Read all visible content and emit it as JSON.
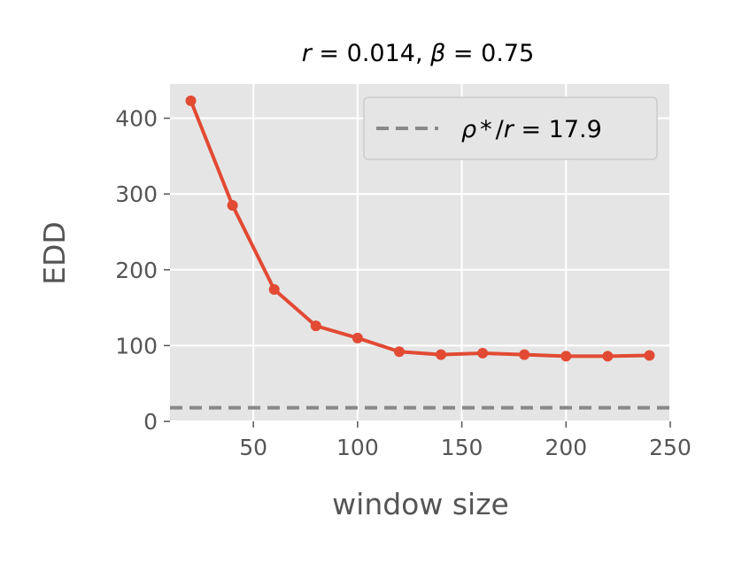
{
  "chart_data": {
    "type": "line",
    "title": {
      "r_symbol": "r",
      "r_value": "0.014",
      "beta_symbol": "β",
      "beta_value": "0.75"
    },
    "xlabel": "window size",
    "ylabel": "EDD",
    "xlim": [
      10,
      250
    ],
    "ylim": [
      0,
      445
    ],
    "xticks": [
      50,
      100,
      150,
      200,
      250
    ],
    "yticks": [
      0,
      100,
      200,
      300,
      400
    ],
    "grid": true,
    "legend_position": "top-right",
    "series": [
      {
        "x": [
          20,
          40,
          60,
          80,
          100,
          120,
          140,
          160,
          180,
          200,
          220,
          240
        ],
        "y": [
          423,
          285,
          174,
          126,
          110,
          92,
          88,
          90,
          88,
          86,
          86,
          87
        ],
        "color": "#E24A33"
      }
    ],
    "reference_line": {
      "y": 17.9,
      "color": "#888888",
      "style": "dashed",
      "legend": {
        "rho": "ρ",
        "star": "*",
        "slash": "/",
        "r": "r",
        "value": "17.9"
      }
    },
    "colors": {
      "background": "#E5E5E5",
      "grid": "#FFFFFF",
      "series": "#E24A33",
      "reference": "#888888"
    }
  }
}
